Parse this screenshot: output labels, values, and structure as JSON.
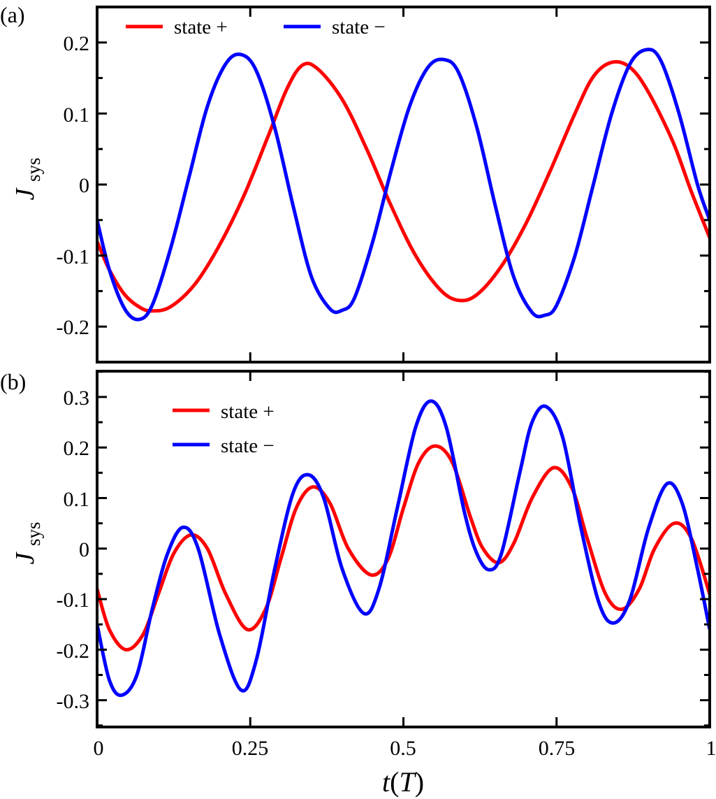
{
  "figure": {
    "xlabel_var": "t",
    "xlabel_unit": "T",
    "ylabel_main": "J",
    "ylabel_sub": "sys",
    "colors": {
      "state_plus": "#ff0000",
      "state_minus": "#0000ff",
      "axis": "#000000"
    }
  },
  "chart_data": [
    {
      "panel": "(a)",
      "type": "line",
      "title": "",
      "xlabel": "t(T)",
      "ylabel": "J_sys",
      "xlim": [
        0,
        1
      ],
      "ylim": [
        -0.25,
        0.25
      ],
      "xticks": [
        0,
        0.25,
        0.5,
        0.75,
        1
      ],
      "xtick_labels_visible": false,
      "yticks": [
        -0.2,
        -0.1,
        0,
        0.1,
        0.2
      ],
      "ytick_labels": [
        "-0.2",
        "-0.1",
        "0",
        "0.1",
        "0.2"
      ],
      "grid": false,
      "legend": {
        "position": "top-left, horizontal",
        "entries": [
          "state +",
          "state −"
        ]
      },
      "series": [
        {
          "name": "state +",
          "color": "#ff0000",
          "x": [
            0,
            0.02,
            0.045,
            0.07,
            0.09,
            0.12,
            0.16,
            0.2,
            0.24,
            0.28,
            0.31,
            0.335,
            0.36,
            0.4,
            0.44,
            0.48,
            0.52,
            0.56,
            0.59,
            0.62,
            0.66,
            0.7,
            0.74,
            0.78,
            0.81,
            0.84,
            0.87,
            0.9,
            0.94,
            0.97,
            1.0
          ],
          "y": [
            -0.08,
            -0.12,
            -0.155,
            -0.173,
            -0.178,
            -0.172,
            -0.14,
            -0.085,
            -0.015,
            0.07,
            0.135,
            0.168,
            0.163,
            0.12,
            0.05,
            -0.03,
            -0.1,
            -0.148,
            -0.163,
            -0.155,
            -0.115,
            -0.055,
            0.02,
            0.1,
            0.152,
            0.172,
            0.165,
            0.13,
            0.06,
            -0.01,
            -0.075
          ]
        },
        {
          "name": "state −",
          "color": "#0000ff",
          "x": [
            0,
            0.02,
            0.045,
            0.068,
            0.09,
            0.12,
            0.15,
            0.18,
            0.21,
            0.235,
            0.26,
            0.29,
            0.32,
            0.35,
            0.38,
            0.4,
            0.42,
            0.45,
            0.48,
            0.51,
            0.54,
            0.566,
            0.59,
            0.62,
            0.65,
            0.68,
            0.71,
            0.731,
            0.75,
            0.78,
            0.81,
            0.84,
            0.87,
            0.897,
            0.92,
            0.95,
            0.98,
            1.0
          ],
          "y": [
            -0.05,
            -0.12,
            -0.175,
            -0.19,
            -0.17,
            -0.09,
            0.01,
            0.11,
            0.17,
            0.183,
            0.16,
            0.08,
            -0.03,
            -0.13,
            -0.175,
            -0.177,
            -0.16,
            -0.08,
            0.02,
            0.11,
            0.165,
            0.176,
            0.158,
            0.08,
            -0.03,
            -0.13,
            -0.18,
            -0.184,
            -0.17,
            -0.1,
            0.0,
            0.1,
            0.17,
            0.19,
            0.175,
            0.1,
            0.0,
            -0.05
          ]
        }
      ]
    },
    {
      "panel": "(b)",
      "type": "line",
      "title": "",
      "xlabel": "t(T)",
      "ylabel": "J_sys",
      "xlim": [
        0,
        1
      ],
      "ylim": [
        -0.353,
        0.351
      ],
      "xticks": [
        0,
        0.25,
        0.5,
        0.75,
        1
      ],
      "xtick_labels": [
        "0",
        "0.25",
        "0.5",
        "0.75",
        "1"
      ],
      "yticks": [
        -0.3,
        -0.2,
        -0.1,
        0,
        0.1,
        0.2,
        0.3
      ],
      "ytick_labels": [
        "-0.3",
        "-0.2",
        "-0.1",
        "0",
        "0.1",
        "0.2",
        "0.3"
      ],
      "grid": false,
      "legend": {
        "position": "upper-left, stacked",
        "entries": [
          "state +",
          "state −"
        ]
      },
      "series": [
        {
          "name": "state +",
          "color": "#ff0000",
          "x": [
            0,
            0.02,
            0.047,
            0.075,
            0.1,
            0.125,
            0.153,
            0.18,
            0.21,
            0.245,
            0.275,
            0.3,
            0.325,
            0.352,
            0.38,
            0.41,
            0.447,
            0.475,
            0.5,
            0.525,
            0.552,
            0.58,
            0.61,
            0.63,
            0.656,
            0.68,
            0.71,
            0.745,
            0.775,
            0.8,
            0.83,
            0.857,
            0.885,
            0.91,
            0.942,
            0.97,
            1.0
          ],
          "y": [
            -0.08,
            -0.16,
            -0.2,
            -0.17,
            -0.09,
            -0.01,
            0.027,
            0.0,
            -0.09,
            -0.16,
            -0.12,
            -0.02,
            0.08,
            0.122,
            0.09,
            0.0,
            -0.052,
            -0.02,
            0.08,
            0.17,
            0.203,
            0.17,
            0.06,
            0.0,
            -0.028,
            0.01,
            0.1,
            0.16,
            0.12,
            0.02,
            -0.09,
            -0.12,
            -0.08,
            0.0,
            0.05,
            0.02,
            -0.09
          ]
        },
        {
          "name": "state −",
          "color": "#0000ff",
          "x": [
            0,
            0.02,
            0.04,
            0.065,
            0.09,
            0.115,
            0.14,
            0.165,
            0.2,
            0.235,
            0.26,
            0.29,
            0.32,
            0.345,
            0.37,
            0.4,
            0.435,
            0.46,
            0.49,
            0.52,
            0.545,
            0.57,
            0.6,
            0.62,
            0.64,
            0.66,
            0.69,
            0.71,
            0.733,
            0.76,
            0.79,
            0.82,
            0.844,
            0.87,
            0.9,
            0.93,
            0.955,
            0.98,
            1.0
          ],
          "y": [
            -0.15,
            -0.26,
            -0.29,
            -0.25,
            -0.12,
            -0.01,
            0.042,
            0.0,
            -0.17,
            -0.28,
            -0.22,
            -0.04,
            0.11,
            0.146,
            0.1,
            -0.04,
            -0.128,
            -0.08,
            0.08,
            0.24,
            0.292,
            0.24,
            0.07,
            -0.01,
            -0.042,
            -0.01,
            0.15,
            0.25,
            0.281,
            0.22,
            0.04,
            -0.11,
            -0.147,
            -0.1,
            0.04,
            0.128,
            0.09,
            -0.04,
            -0.16
          ]
        }
      ]
    }
  ],
  "panels": {
    "a": {
      "label": "(a)",
      "legend": {
        "plus_label": "state +",
        "minus_label": "state −"
      },
      "ytick_labels": [
        "0.2",
        "0.1",
        "0",
        "-0.1",
        "-0.2"
      ]
    },
    "b": {
      "label": "(b)",
      "legend": {
        "plus_label": "state +",
        "minus_label": "state −"
      },
      "ytick_labels": [
        "0.3",
        "0.2",
        "0.1",
        "0",
        "-0.1",
        "-0.2",
        "-0.3"
      ],
      "xtick_labels": [
        "0",
        "0.25",
        "0.5",
        "0.75",
        "1"
      ]
    }
  }
}
